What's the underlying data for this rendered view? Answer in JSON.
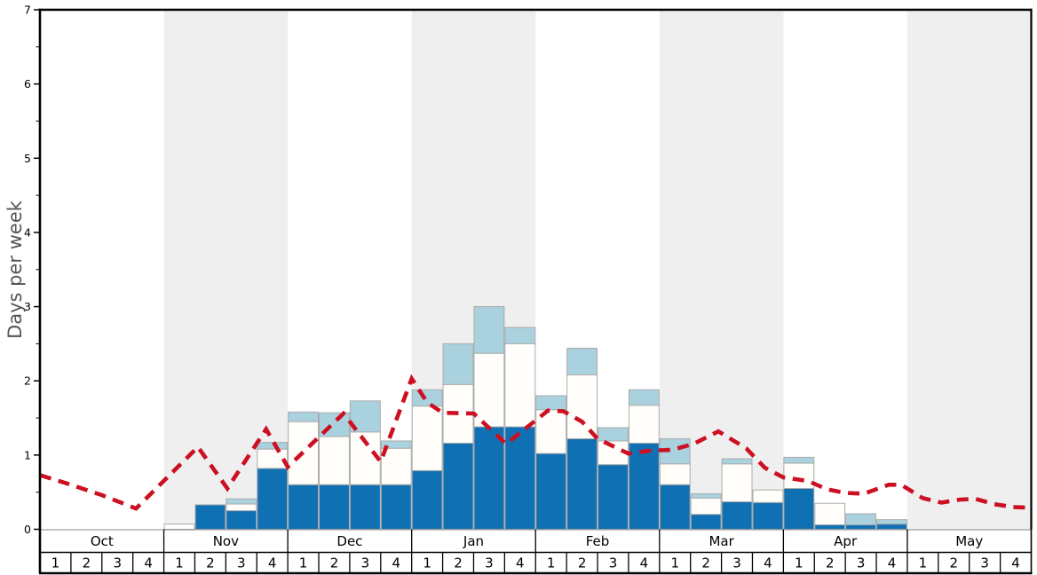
{
  "chart_data": {
    "type": "bar",
    "title": "",
    "ylabel": "Days per week",
    "ylim": [
      0,
      7
    ],
    "ytick_major_step": 1,
    "ytick_minor_step": 0.5,
    "ytick_labels": [
      "0",
      "1",
      "2",
      "3",
      "4",
      "5",
      "6",
      "7"
    ],
    "grid": false,
    "legend": "none",
    "months": [
      "Oct",
      "Nov",
      "Dec",
      "Jan",
      "Feb",
      "Mar",
      "Apr",
      "May"
    ],
    "weeks_per_month": 4,
    "week_labels": [
      "1",
      "2",
      "3",
      "4"
    ],
    "shaded_month_indices": [
      1,
      3,
      5,
      7
    ],
    "bars_note": "32 weekly stacked bars; values are cumulative segment tops in days-per-week",
    "stacked_cumulative_tops": {
      "dark_blue": [
        0,
        0,
        0,
        0,
        0,
        0.33,
        0.25,
        0.82,
        0.6,
        0.6,
        0.6,
        0.6,
        0.79,
        1.16,
        1.38,
        1.38,
        1.02,
        1.22,
        0.87,
        1.16,
        0.6,
        0.2,
        0.37,
        0.36,
        0.55,
        0.06,
        0.06,
        0.07,
        0,
        0,
        0,
        0
      ],
      "white": [
        0,
        0,
        0,
        0,
        0.07,
        0.33,
        0.34,
        1.08,
        1.45,
        1.25,
        1.31,
        1.09,
        1.66,
        1.95,
        2.37,
        2.5,
        1.61,
        2.08,
        1.19,
        1.67,
        0.88,
        0.42,
        0.88,
        0.53,
        0.89,
        0.35,
        0.06,
        0.07,
        0,
        0,
        0,
        0
      ],
      "light_blue": [
        0,
        0,
        0,
        0,
        0.07,
        0.33,
        0.41,
        1.17,
        1.58,
        1.57,
        1.73,
        1.19,
        1.88,
        2.5,
        3.0,
        2.72,
        1.8,
        2.44,
        1.37,
        1.88,
        1.22,
        0.48,
        0.95,
        0.53,
        0.97,
        0.35,
        0.21,
        0.13,
        0,
        0,
        0,
        0
      ]
    },
    "dashed_line_note": "red dashed trend line; points are [week_position_from_Oct_start, days_per_week]",
    "dashed_line_points": [
      [
        0,
        0.73
      ],
      [
        1,
        0.6
      ],
      [
        2,
        0.46
      ],
      [
        3.1,
        0.28
      ],
      [
        5.1,
        1.11
      ],
      [
        6.05,
        0.55
      ],
      [
        7.3,
        1.35
      ],
      [
        8.0,
        0.84
      ],
      [
        9.8,
        1.56
      ],
      [
        11.0,
        0.91
      ],
      [
        12.0,
        2.03
      ],
      [
        12.5,
        1.71
      ],
      [
        13.0,
        1.57
      ],
      [
        14.0,
        1.56
      ],
      [
        15.05,
        1.15
      ],
      [
        16.4,
        1.6
      ],
      [
        16.9,
        1.59
      ],
      [
        17.5,
        1.45
      ],
      [
        18.0,
        1.22
      ],
      [
        19.0,
        1.02
      ],
      [
        19.7,
        1.06
      ],
      [
        20.4,
        1.07
      ],
      [
        21.1,
        1.15
      ],
      [
        21.9,
        1.32
      ],
      [
        22.8,
        1.09
      ],
      [
        23.4,
        0.83
      ],
      [
        24.0,
        0.7
      ],
      [
        24.8,
        0.65
      ],
      [
        25.4,
        0.54
      ],
      [
        26.0,
        0.49
      ],
      [
        26.6,
        0.48
      ],
      [
        27.4,
        0.6
      ],
      [
        27.8,
        0.6
      ],
      [
        28.5,
        0.42
      ],
      [
        29.1,
        0.36
      ],
      [
        29.7,
        0.4
      ],
      [
        30.2,
        0.41
      ],
      [
        30.8,
        0.34
      ],
      [
        31.4,
        0.3
      ],
      [
        32.0,
        0.29
      ]
    ],
    "colors": {
      "dark_blue": "#1070b4",
      "white_bar": "#fffefa",
      "light_blue": "#aad2de",
      "bar_border": "#ababab",
      "shade_band": "#efefef",
      "line_red": "#cc1022",
      "axis": "#000000",
      "zero_line": "#888888",
      "ylabel_color": "#555555",
      "tick_label_color": "#000000"
    }
  }
}
